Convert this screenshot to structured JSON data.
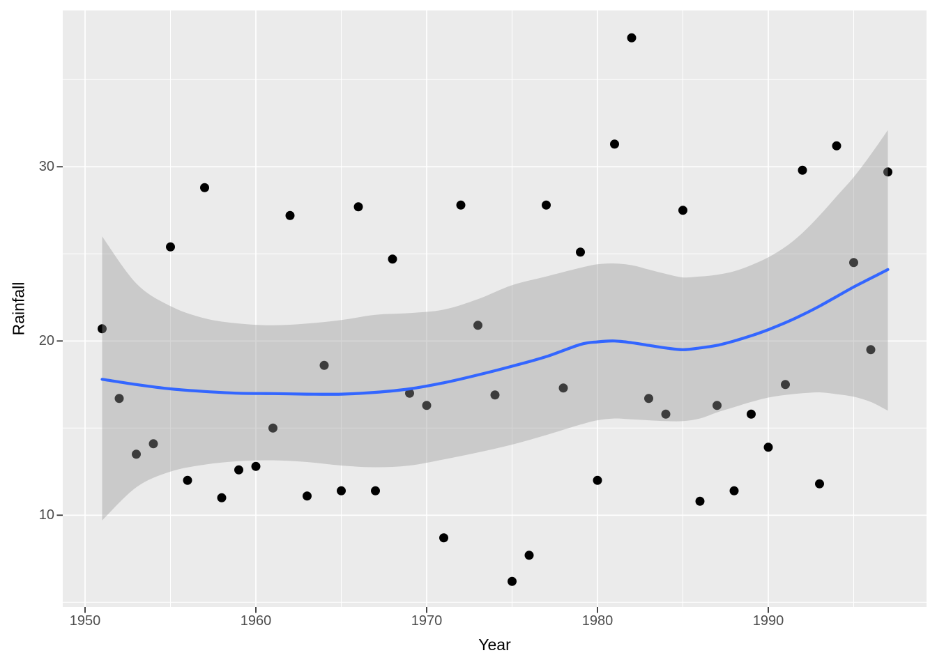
{
  "chart_data": {
    "type": "scatter",
    "title": "",
    "xlabel": "Year",
    "ylabel": "Rainfall",
    "x_major_ticks": [
      1950,
      1960,
      1970,
      1980,
      1990
    ],
    "x_minor_gridlines": [
      1955,
      1965,
      1975,
      1985,
      1995
    ],
    "y_major_ticks": [
      10,
      20,
      30
    ],
    "y_minor_gridlines": [
      5,
      15,
      25,
      35
    ],
    "xlim": [
      1948.7,
      1999.3
    ],
    "ylim": [
      4.7,
      39.0
    ],
    "grid": "white major and minor gridlines on grey panel",
    "legend_position": "none",
    "points": {
      "year": [
        1951,
        1952,
        1953,
        1954,
        1955,
        1956,
        1957,
        1958,
        1959,
        1960,
        1961,
        1962,
        1963,
        1964,
        1965,
        1966,
        1967,
        1968,
        1969,
        1970,
        1971,
        1972,
        1973,
        1974,
        1975,
        1976,
        1977,
        1978,
        1979,
        1980,
        1981,
        1982,
        1983,
        1984,
        1985,
        1986,
        1987,
        1988,
        1989,
        1990,
        1991,
        1992,
        1993,
        1994,
        1995,
        1996,
        1997
      ],
      "rainfall": [
        20.7,
        16.7,
        13.5,
        14.1,
        25.4,
        12.0,
        28.8,
        11.0,
        12.6,
        12.8,
        15.0,
        27.2,
        11.1,
        18.6,
        11.4,
        27.7,
        11.4,
        24.7,
        17.0,
        16.3,
        8.7,
        27.8,
        20.9,
        16.9,
        6.2,
        7.7,
        27.8,
        17.3,
        25.1,
        12.0,
        31.3,
        37.4,
        16.7,
        15.8,
        27.5,
        10.8,
        16.3,
        11.4,
        15.8,
        13.9,
        17.5,
        29.8,
        11.8,
        31.2,
        24.5,
        19.5,
        29.7
      ]
    },
    "smooth": {
      "method": "loess",
      "year": [
        1951,
        1953,
        1955,
        1957,
        1959,
        1961,
        1963,
        1965,
        1967,
        1969,
        1971,
        1973,
        1975,
        1977,
        1979,
        1980,
        1981,
        1982,
        1983,
        1984,
        1985,
        1986,
        1987,
        1988,
        1989,
        1990,
        1991,
        1992,
        1993,
        1994,
        1995,
        1996,
        1997
      ],
      "fit": [
        17.8,
        17.5,
        17.25,
        17.1,
        17.0,
        16.98,
        16.95,
        16.95,
        17.05,
        17.25,
        17.6,
        18.05,
        18.55,
        19.1,
        19.8,
        19.95,
        20.0,
        19.9,
        19.75,
        19.6,
        19.5,
        19.6,
        19.75,
        20.0,
        20.3,
        20.65,
        21.05,
        21.5,
        22.0,
        22.55,
        23.1,
        23.6,
        24.1
      ],
      "ci_upper": [
        26.0,
        23.3,
        22.0,
        21.3,
        21.0,
        20.9,
        21.0,
        21.2,
        21.5,
        21.6,
        21.8,
        22.4,
        23.2,
        23.7,
        24.2,
        24.4,
        24.45,
        24.35,
        24.1,
        23.85,
        23.65,
        23.7,
        23.8,
        24.0,
        24.35,
        24.8,
        25.4,
        26.2,
        27.2,
        28.3,
        29.4,
        30.7,
        32.1
      ],
      "ci_lower": [
        9.7,
        11.6,
        12.5,
        12.9,
        13.1,
        13.15,
        13.05,
        12.85,
        12.75,
        12.85,
        13.2,
        13.6,
        14.05,
        14.6,
        15.2,
        15.45,
        15.55,
        15.5,
        15.45,
        15.4,
        15.4,
        15.55,
        15.9,
        16.2,
        16.5,
        16.75,
        16.9,
        17.0,
        17.05,
        16.95,
        16.8,
        16.5,
        16.0
      ]
    },
    "style": {
      "point_color": "#000000",
      "line_color": "#3366FF",
      "ribbon_color": "#999999",
      "ribbon_opacity": 0.4,
      "panel_color": "#EBEBEB",
      "grid_color": "#FFFFFF",
      "tick_text_color": "#4D4D4D",
      "axis_title_color": "#000000",
      "tick_mark_color": "#333333"
    }
  }
}
